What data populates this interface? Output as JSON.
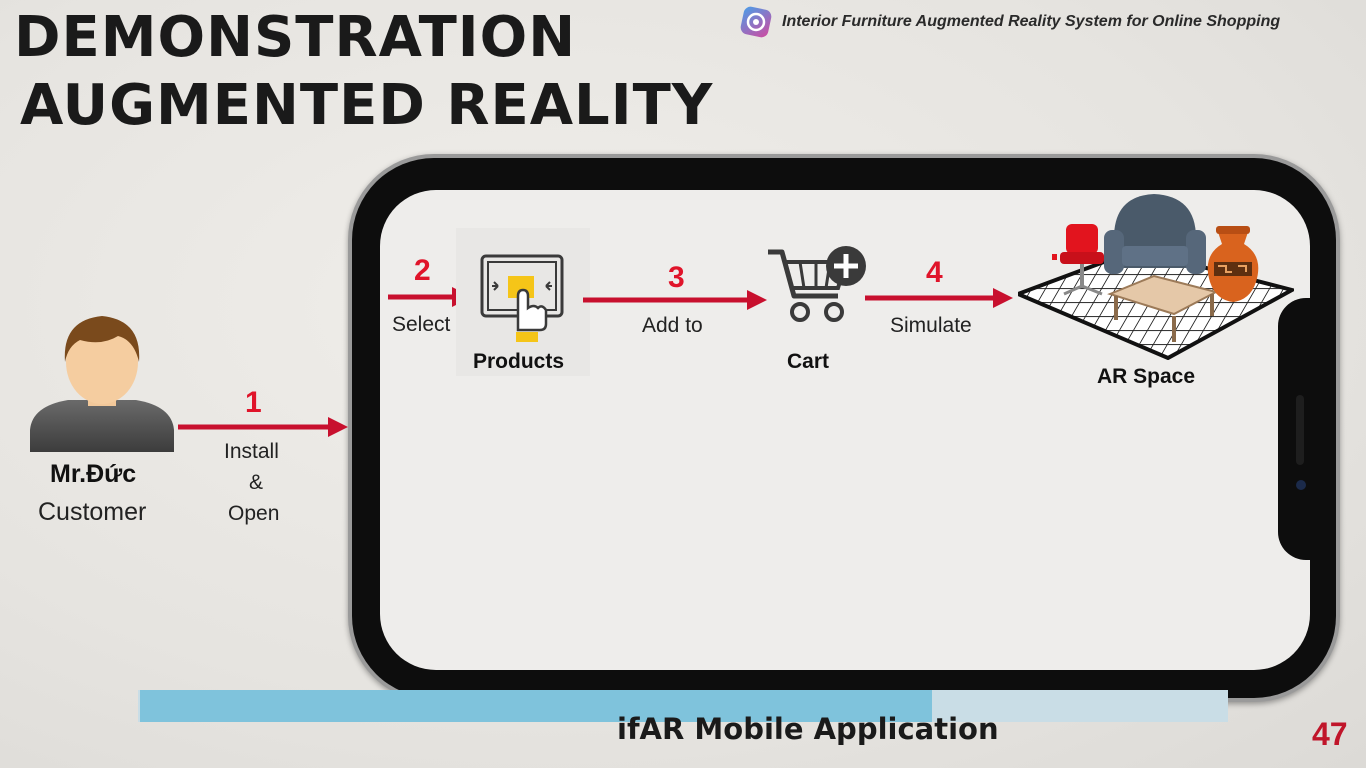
{
  "header": {
    "title_line1": "DEMONSTRATION",
    "title_line2": "AUGMENTED REALITY",
    "system_name": "Interior Furniture Augmented Reality System for Online Shopping",
    "logo_icon": "ar-app-logo-icon"
  },
  "actor": {
    "name": "Mr.Đức",
    "role": "Customer",
    "icon": "person-avatar-icon"
  },
  "steps": [
    {
      "number": "1",
      "label_lines": [
        "Install",
        "&",
        "Open"
      ]
    },
    {
      "number": "2",
      "label": "Select",
      "target": "Products",
      "icon": "touch-select-icon"
    },
    {
      "number": "3",
      "label": "Add to",
      "target": "Cart",
      "icon": "cart-add-icon"
    },
    {
      "number": "4",
      "label": "Simulate",
      "target": "AR Space",
      "icon": "ar-furniture-room-icon"
    }
  ],
  "colors": {
    "arrow": "#c8102e",
    "step_number": "#e0142a",
    "page_number": "#c0152a",
    "footer_bar": "#7fc3dc"
  },
  "footer": {
    "app_name": "ifAR Mobile Application",
    "page_number": "47"
  }
}
